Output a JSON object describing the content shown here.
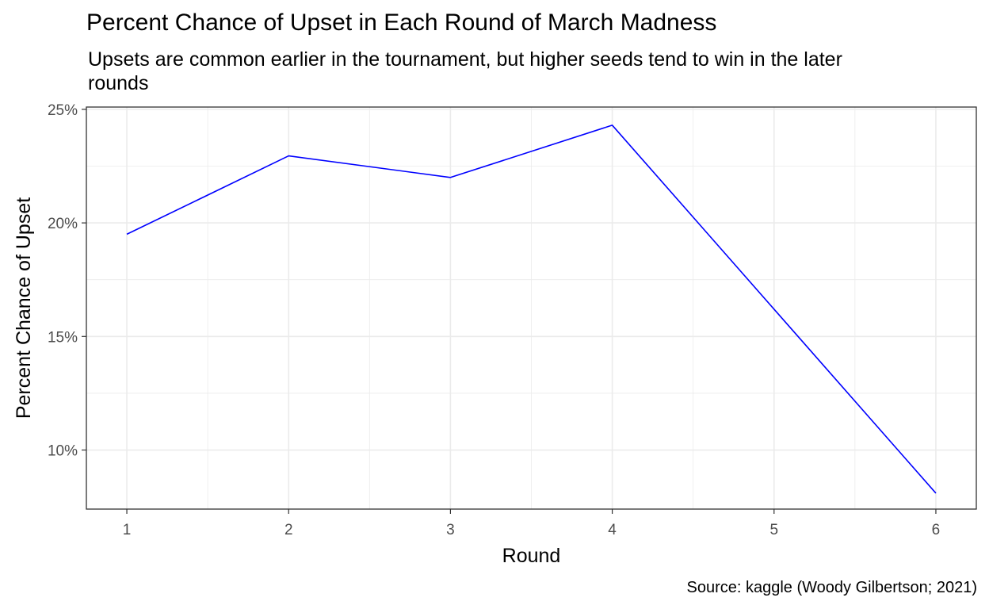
{
  "chart_data": {
    "type": "line",
    "title": "Percent Chance of Upset in Each Round of March Madness",
    "subtitle": "Upsets are common earlier in the tournament, but higher seeds tend to win in the later rounds",
    "caption": "Source: kaggle (Woody Gilbertson; 2021)",
    "xlabel": "Round",
    "ylabel": "Percent Chance of Upset",
    "x": [
      1,
      2,
      3,
      4,
      5,
      6
    ],
    "series": [
      {
        "values": [
          19.5,
          22.95,
          22.0,
          24.3,
          16.2,
          8.1
        ]
      }
    ],
    "xlim": [
      0.75,
      6.25
    ],
    "ylim": [
      7.4,
      25.1
    ],
    "x_ticks": [
      1,
      2,
      3,
      4,
      5,
      6
    ],
    "x_tick_labels": [
      "1",
      "2",
      "3",
      "4",
      "5",
      "6"
    ],
    "y_ticks": [
      10,
      15,
      20,
      25
    ],
    "y_tick_labels": [
      "10%",
      "15%",
      "20%",
      "25%"
    ],
    "grid": true,
    "line_color": "#0000FF",
    "grid_color": "#EBEBEB",
    "panel_border_color": "#333333"
  }
}
